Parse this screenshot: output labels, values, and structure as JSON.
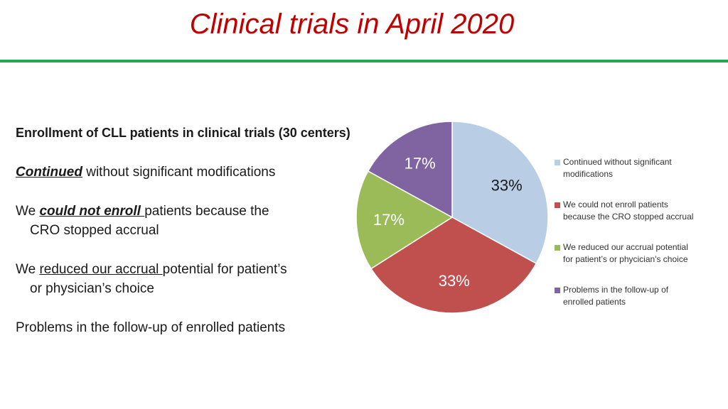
{
  "slide": {
    "title": "Clinical trials in April 2020"
  },
  "text": {
    "heading": "Enrollment of CLL patients in clinical trials (30 centers)",
    "items": [
      {
        "lead": "Continued",
        "rest": " without significant modifications"
      },
      {
        "pre": "We ",
        "lead": "could not enroll ",
        "rest": "patients because the",
        "line2": "CRO stopped accrual"
      },
      {
        "pre": "We ",
        "lead": "reduced our accrual ",
        "rest": "potential for patient’s",
        "line2": "or physician’s choice"
      },
      {
        "rest": "Problems in the follow-up of enrolled patients"
      }
    ]
  },
  "colors": {
    "title": "#c00000",
    "rule": "#1fa84e"
  },
  "chart_data": {
    "type": "pie",
    "slices": [
      {
        "name": "Continued without significant modifications",
        "value": 33,
        "label": "33%",
        "color": "#b9cde5"
      },
      {
        "name": "We could not enroll patients because the CRO stopped accrual",
        "value": 33,
        "label": "33%",
        "color": "#c0504d"
      },
      {
        "name": "We reduced our accrual potential for patient’s or phycician's choice",
        "value": 17,
        "label": "17%",
        "color": "#9bbb59"
      },
      {
        "name": "Problems in the follow-up of enrolled patients",
        "value": 17,
        "label": "17%",
        "color": "#8064a2"
      }
    ],
    "legend_placement": "right",
    "legend": [
      {
        "line1": "Continued without significant",
        "line2": "modifications"
      },
      {
        "line1": "We could not enroll patients",
        "line2": "because the CRO stopped accrual"
      },
      {
        "line1": "We reduced our accrual potential",
        "line2": "for patient’s or phycician's choice"
      },
      {
        "line1": "Problems in the follow-up of",
        "line2": "enrolled patients"
      }
    ]
  }
}
